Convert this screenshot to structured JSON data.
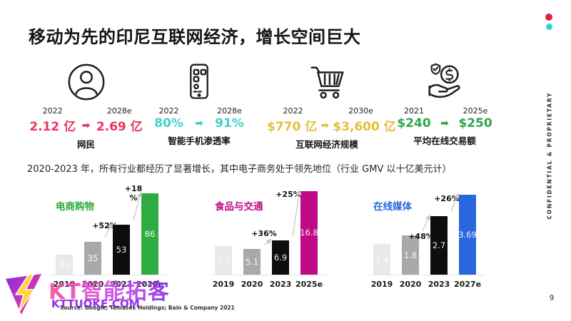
{
  "slide": {
    "title": "移动为先的印尼互联网经济，增长空间巨大",
    "subtitle": "2020-2023 年，所有行业都经历了显著增长，其中电子商务处于领先地位（行业 GMV 以十亿美元计）",
    "source": "Source: Google; Temasek Holdings; Bain & Company 2021",
    "sidebar_text": "CONFIDENTIAL & PROPRIETARY",
    "page_number": "9"
  },
  "ui": {
    "arrow_glyph": "➡"
  },
  "stats": [
    {
      "icon": "person-icon",
      "from_year": "2022",
      "to_year": "2028e",
      "from_value": "2.12 亿",
      "to_value": "2.69 亿",
      "label": "网民",
      "color": "#E8365B"
    },
    {
      "icon": "smartphone-icon",
      "from_year": "2022",
      "to_year": "2028e",
      "from_value": "80%",
      "to_value": "91%",
      "label": "智能手机渗透率",
      "color": "#41D2CB"
    },
    {
      "icon": "cart-icon",
      "from_year": "2022",
      "to_year": "2030e",
      "from_value": "$770 亿",
      "to_value": "$3,600 亿",
      "label": "互联网经济规模",
      "color": "#E3C03A"
    },
    {
      "icon": "hand-coin-icon",
      "from_year": "2021",
      "to_year": "2025e",
      "from_value": "$240",
      "to_value": "$250",
      "label": "平均在线交易额",
      "color": "#30A64B"
    }
  ],
  "chart_data": [
    {
      "type": "bar",
      "title": "电商购物",
      "title_color": "#2EA93B",
      "categories": [
        "2019",
        "2020",
        "2023",
        "2028e"
      ],
      "values": [
        21,
        35,
        53,
        86
      ],
      "bar_colors": [
        "#E9E9E9",
        "#A9A9A9",
        "#0D0D0D",
        "#2EAC3F"
      ],
      "growth": [
        {
          "label": "+52%",
          "x": 66,
          "y": 53
        },
        {
          "label": "+18\n%",
          "x": 106,
          "y": 1
        }
      ],
      "ylim": [
        0,
        92
      ],
      "ylabel": "",
      "xlabel": "",
      "grid": false
    },
    {
      "type": "bar",
      "title": "食品与交通",
      "title_color": "#BE0A87",
      "categories": [
        "2019",
        "2020",
        "2023",
        "2025e"
      ],
      "values": [
        5.7,
        5.1,
        6.9,
        16.8
      ],
      "bar_colors": [
        "#E9E9E9",
        "#A9A9A9",
        "#0D0D0D",
        "#BE0A87"
      ],
      "growth": [
        {
          "label": "+36%",
          "x": 66,
          "y": 64
        },
        {
          "label": "+25%",
          "x": 100,
          "y": 9
        }
      ],
      "ylim": [
        0,
        17.5
      ],
      "ylabel": "",
      "xlabel": "",
      "grid": false
    },
    {
      "type": "bar",
      "title": "在线媒体",
      "title_color": "#2A66DE",
      "categories": [
        "2019",
        "2020",
        "2023",
        "2027e"
      ],
      "values": [
        1.4,
        1.8,
        2.7,
        3.69
      ],
      "bar_colors": [
        "#E9E9E9",
        "#A9A9A9",
        "#0D0D0D",
        "#2A66DE"
      ],
      "growth": [
        {
          "label": "+48%",
          "x": 64,
          "y": 68
        },
        {
          "label": "+26%",
          "x": 100,
          "y": 15
        }
      ],
      "ylim": [
        0,
        4.0
      ],
      "ylabel": "",
      "xlabel": "",
      "grid": false
    }
  ],
  "watermark": {
    "brand": "KT智能拓客",
    "url": "KTTUOKE.COM"
  },
  "decor": {
    "dot1_color": "#E02244",
    "dot2_color": "#2FD6D6",
    "arrow_color": "#C9C9C9"
  }
}
